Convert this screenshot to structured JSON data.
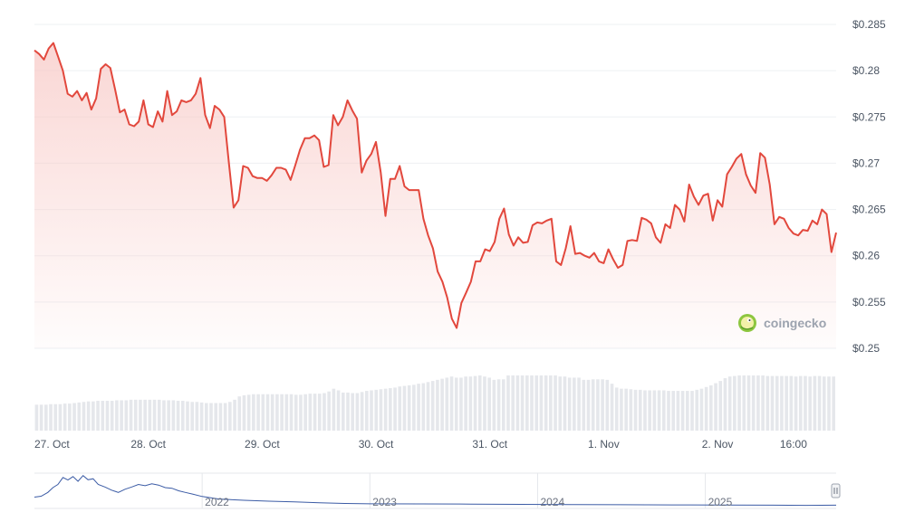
{
  "colors": {
    "line": "#e2483d",
    "area_top": "#f8c9c6",
    "volume": "#e5e7eb",
    "grid": "#eef0f3",
    "navigator_line": "#3b5ba5",
    "navigator_border": "#e5e7eb"
  },
  "watermark": {
    "text": "coingecko",
    "icon": "gecko-logo-icon"
  },
  "chart_data": {
    "type": "line",
    "title": "",
    "xlabel": "",
    "ylabel": "",
    "ylim": [
      0.25,
      0.285
    ],
    "y_ticks": [
      "$0.285",
      "$0.28",
      "$0.275",
      "$0.27",
      "$0.265",
      "$0.26",
      "$0.255",
      "$0.25"
    ],
    "x_ticks": [
      "27. Oct",
      "28. Oct",
      "29. Oct",
      "30. Oct",
      "31. Oct",
      "1. Nov",
      "2. Nov",
      "16:00"
    ],
    "x_range_hours": [
      0,
      168
    ],
    "series": [
      {
        "values": [
          [
            0.0,
            0.2822
          ],
          [
            1.0,
            0.2818
          ],
          [
            2.0,
            0.2812
          ],
          [
            3.0,
            0.2824
          ],
          [
            4.0,
            0.283
          ],
          [
            5.0,
            0.2815
          ],
          [
            6.0,
            0.28
          ],
          [
            7.0,
            0.2775
          ],
          [
            8.0,
            0.2772
          ],
          [
            9.0,
            0.2778
          ],
          [
            10.0,
            0.2768
          ],
          [
            11.0,
            0.2776
          ],
          [
            12.0,
            0.2758
          ],
          [
            13.0,
            0.277
          ],
          [
            14.0,
            0.2802
          ],
          [
            15.0,
            0.2807
          ],
          [
            16.0,
            0.2803
          ],
          [
            17.0,
            0.278
          ],
          [
            18.0,
            0.2755
          ],
          [
            19.0,
            0.2758
          ],
          [
            20.0,
            0.2742
          ],
          [
            21.0,
            0.274
          ],
          [
            22.0,
            0.2745
          ],
          [
            23.0,
            0.2768
          ],
          [
            24.0,
            0.2742
          ],
          [
            25.0,
            0.2739
          ],
          [
            26.0,
            0.2756
          ],
          [
            27.0,
            0.2745
          ],
          [
            28.0,
            0.2778
          ],
          [
            29.0,
            0.2752
          ],
          [
            30.0,
            0.2756
          ],
          [
            31.0,
            0.2768
          ],
          [
            32.0,
            0.2766
          ],
          [
            33.0,
            0.2768
          ],
          [
            34.0,
            0.2775
          ],
          [
            35.0,
            0.2792
          ],
          [
            36.0,
            0.2752
          ],
          [
            37.0,
            0.2738
          ],
          [
            38.0,
            0.2762
          ],
          [
            39.0,
            0.2758
          ],
          [
            40.0,
            0.275
          ],
          [
            41.0,
            0.27
          ],
          [
            42.0,
            0.2652
          ],
          [
            43.0,
            0.266
          ],
          [
            44.0,
            0.2697
          ],
          [
            45.0,
            0.2695
          ],
          [
            46.0,
            0.2686
          ],
          [
            47.0,
            0.2684
          ],
          [
            48.0,
            0.2684
          ],
          [
            49.0,
            0.2681
          ],
          [
            50.0,
            0.2687
          ],
          [
            51.0,
            0.2695
          ],
          [
            52.0,
            0.2695
          ],
          [
            53.0,
            0.2693
          ],
          [
            54.0,
            0.2682
          ],
          [
            55.0,
            0.2698
          ],
          [
            56.0,
            0.2715
          ],
          [
            57.0,
            0.2727
          ],
          [
            58.0,
            0.2727
          ],
          [
            59.0,
            0.273
          ],
          [
            60.0,
            0.2725
          ],
          [
            61.0,
            0.2696
          ],
          [
            62.0,
            0.2698
          ],
          [
            63.0,
            0.2752
          ],
          [
            64.0,
            0.2741
          ],
          [
            65.0,
            0.275
          ],
          [
            66.0,
            0.2768
          ],
          [
            67.0,
            0.2757
          ],
          [
            68.0,
            0.2748
          ],
          [
            69.0,
            0.269
          ],
          [
            70.0,
            0.2703
          ],
          [
            71.0,
            0.271
          ],
          [
            72.0,
            0.2723
          ],
          [
            73.0,
            0.269
          ],
          [
            74.0,
            0.2643
          ],
          [
            75.0,
            0.2683
          ],
          [
            76.0,
            0.2683
          ],
          [
            77.0,
            0.2697
          ],
          [
            78.0,
            0.2675
          ],
          [
            79.0,
            0.2671
          ],
          [
            80.0,
            0.2671
          ],
          [
            81.0,
            0.2671
          ],
          [
            82.0,
            0.264
          ],
          [
            83.0,
            0.2622
          ],
          [
            84.0,
            0.2608
          ],
          [
            85.0,
            0.2583
          ],
          [
            86.0,
            0.2572
          ],
          [
            87.0,
            0.2555
          ],
          [
            88.0,
            0.2532
          ],
          [
            89.0,
            0.2522
          ],
          [
            90.0,
            0.2549
          ],
          [
            91.0,
            0.256
          ],
          [
            92.0,
            0.2572
          ],
          [
            93.0,
            0.2594
          ],
          [
            94.0,
            0.2594
          ],
          [
            95.0,
            0.2607
          ],
          [
            96.0,
            0.2605
          ],
          [
            97.0,
            0.2615
          ],
          [
            98.0,
            0.264
          ],
          [
            99.0,
            0.2651
          ],
          [
            100.0,
            0.2623
          ],
          [
            101.0,
            0.2611
          ],
          [
            102.0,
            0.262
          ],
          [
            103.0,
            0.2614
          ],
          [
            104.0,
            0.2615
          ],
          [
            105.0,
            0.2633
          ],
          [
            106.0,
            0.2636
          ],
          [
            107.0,
            0.2635
          ],
          [
            108.0,
            0.2638
          ],
          [
            109.0,
            0.264
          ],
          [
            110.0,
            0.2594
          ],
          [
            111.0,
            0.259
          ],
          [
            112.0,
            0.2608
          ],
          [
            113.0,
            0.2632
          ],
          [
            114.0,
            0.2602
          ],
          [
            115.0,
            0.2603
          ],
          [
            116.0,
            0.26
          ],
          [
            117.0,
            0.2598
          ],
          [
            118.0,
            0.2603
          ],
          [
            119.0,
            0.2594
          ],
          [
            120.0,
            0.2592
          ],
          [
            121.0,
            0.2607
          ],
          [
            122.0,
            0.2596
          ],
          [
            123.0,
            0.2587
          ],
          [
            124.0,
            0.259
          ],
          [
            125.0,
            0.2616
          ],
          [
            126.0,
            0.2617
          ],
          [
            127.0,
            0.2616
          ],
          [
            128.0,
            0.2641
          ],
          [
            129.0,
            0.2639
          ],
          [
            130.0,
            0.2635
          ],
          [
            131.0,
            0.262
          ],
          [
            132.0,
            0.2614
          ],
          [
            133.0,
            0.2634
          ],
          [
            134.0,
            0.263
          ],
          [
            135.0,
            0.2655
          ],
          [
            136.0,
            0.265
          ],
          [
            137.0,
            0.2637
          ],
          [
            138.0,
            0.2677
          ],
          [
            139.0,
            0.2664
          ],
          [
            140.0,
            0.2655
          ],
          [
            141.0,
            0.2665
          ],
          [
            142.0,
            0.2667
          ],
          [
            143.0,
            0.2638
          ],
          [
            144.0,
            0.266
          ],
          [
            145.0,
            0.2653
          ],
          [
            146.0,
            0.2688
          ],
          [
            147.0,
            0.2696
          ],
          [
            148.0,
            0.2705
          ],
          [
            149.0,
            0.271
          ],
          [
            150.0,
            0.2688
          ],
          [
            151.0,
            0.2676
          ],
          [
            152.0,
            0.2668
          ],
          [
            153.0,
            0.2711
          ],
          [
            154.0,
            0.2706
          ],
          [
            155.0,
            0.2677
          ],
          [
            156.0,
            0.2634
          ],
          [
            157.0,
            0.2642
          ],
          [
            158.0,
            0.264
          ],
          [
            159.0,
            0.263
          ],
          [
            160.0,
            0.2624
          ],
          [
            161.0,
            0.2622
          ],
          [
            162.0,
            0.2628
          ],
          [
            163.0,
            0.2627
          ],
          [
            164.0,
            0.2638
          ],
          [
            165.0,
            0.2634
          ],
          [
            166.0,
            0.265
          ],
          [
            167.0,
            0.2645
          ],
          [
            168.0,
            0.2604
          ],
          [
            169.0,
            0.2625
          ]
        ]
      }
    ],
    "volume": {
      "type": "bar",
      "relative_values": [
        0.47,
        0.47,
        0.47,
        0.48,
        0.48,
        0.48,
        0.49,
        0.49,
        0.5,
        0.51,
        0.52,
        0.53,
        0.53,
        0.54,
        0.54,
        0.54,
        0.54,
        0.55,
        0.55,
        0.55,
        0.56,
        0.56,
        0.56,
        0.56,
        0.56,
        0.56,
        0.56,
        0.55,
        0.55,
        0.55,
        0.54,
        0.54,
        0.53,
        0.52,
        0.52,
        0.51,
        0.5,
        0.5,
        0.5,
        0.5,
        0.5,
        0.52,
        0.56,
        0.62,
        0.64,
        0.65,
        0.66,
        0.66,
        0.66,
        0.66,
        0.66,
        0.66,
        0.66,
        0.66,
        0.66,
        0.65,
        0.65,
        0.66,
        0.67,
        0.67,
        0.67,
        0.68,
        0.71,
        0.76,
        0.73,
        0.69,
        0.69,
        0.68,
        0.68,
        0.7,
        0.72,
        0.73,
        0.74,
        0.75,
        0.76,
        0.77,
        0.78,
        0.8,
        0.81,
        0.82,
        0.83,
        0.85,
        0.86,
        0.88,
        0.9,
        0.92,
        0.94,
        0.96,
        0.98,
        0.96,
        0.96,
        0.98,
        0.98,
        0.99,
        1.0,
        0.98,
        0.96,
        0.92,
        0.93,
        0.93,
        1.0,
        1.0,
        1.0,
        1.0,
        1.0,
        1.0,
        1.0,
        1.0,
        1.0,
        1.0,
        1.0,
        0.98,
        0.98,
        0.96,
        0.96,
        0.96,
        0.92,
        0.92,
        0.93,
        0.93,
        0.93,
        0.92,
        0.85,
        0.78,
        0.76,
        0.76,
        0.75,
        0.74,
        0.74,
        0.73,
        0.73,
        0.73,
        0.73,
        0.73,
        0.72,
        0.72,
        0.72,
        0.72,
        0.72,
        0.72,
        0.74,
        0.76,
        0.79,
        0.82,
        0.86,
        0.9,
        0.95,
        0.98,
        0.99,
        1.0,
        1.0,
        1.0,
        1.0,
        1.0,
        1.0,
        0.99,
        0.99,
        0.99,
        0.99,
        0.99,
        0.99,
        0.98,
        0.99,
        0.99,
        0.98,
        0.99,
        0.99,
        0.98,
        0.98,
        0.98
      ]
    },
    "navigator": {
      "x_ticks": [
        "2022",
        "2023",
        "2024",
        "2025"
      ],
      "values": [
        [
          2021.0,
          0.3
        ],
        [
          2021.04,
          0.33
        ],
        [
          2021.08,
          0.45
        ],
        [
          2021.11,
          0.6
        ],
        [
          2021.14,
          0.7
        ],
        [
          2021.17,
          0.92
        ],
        [
          2021.2,
          0.84
        ],
        [
          2021.23,
          0.95
        ],
        [
          2021.26,
          0.8
        ],
        [
          2021.29,
          0.98
        ],
        [
          2021.32,
          0.85
        ],
        [
          2021.35,
          0.88
        ],
        [
          2021.38,
          0.7
        ],
        [
          2021.42,
          0.62
        ],
        [
          2021.46,
          0.52
        ],
        [
          2021.5,
          0.45
        ],
        [
          2021.54,
          0.55
        ],
        [
          2021.58,
          0.62
        ],
        [
          2021.62,
          0.7
        ],
        [
          2021.66,
          0.66
        ],
        [
          2021.7,
          0.72
        ],
        [
          2021.74,
          0.68
        ],
        [
          2021.78,
          0.6
        ],
        [
          2021.82,
          0.58
        ],
        [
          2021.86,
          0.5
        ],
        [
          2021.9,
          0.45
        ],
        [
          2021.94,
          0.4
        ],
        [
          2022.0,
          0.32
        ],
        [
          2022.1,
          0.24
        ],
        [
          2022.25,
          0.2
        ],
        [
          2022.4,
          0.17
        ],
        [
          2022.55,
          0.15
        ],
        [
          2022.7,
          0.12
        ],
        [
          2022.85,
          0.1
        ],
        [
          2023.0,
          0.09
        ],
        [
          2023.3,
          0.085
        ],
        [
          2023.6,
          0.08
        ],
        [
          2023.9,
          0.07
        ],
        [
          2024.2,
          0.065
        ],
        [
          2024.5,
          0.06
        ],
        [
          2024.8,
          0.055
        ],
        [
          2025.1,
          0.05
        ],
        [
          2025.4,
          0.045
        ],
        [
          2025.6,
          0.04
        ],
        [
          2025.78,
          0.045
        ]
      ]
    }
  }
}
